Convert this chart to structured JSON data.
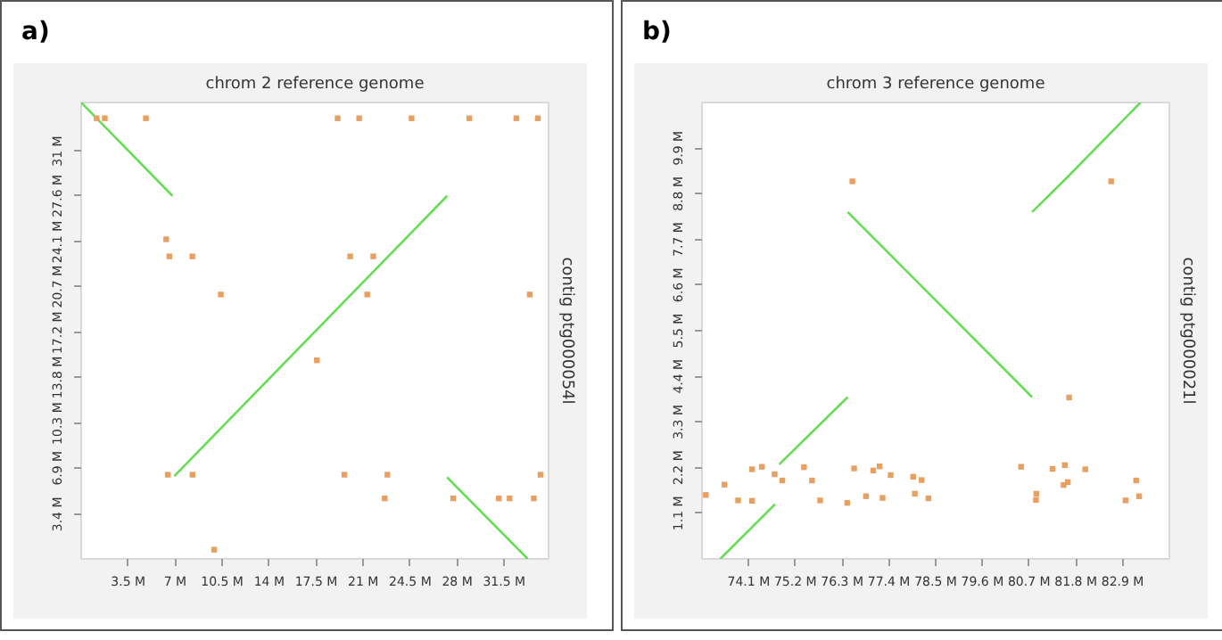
{
  "chart_data": [
    {
      "type": "line",
      "title": "chrom 2 reference genome",
      "ylabel": "contig ptg000054l",
      "annotations": [
        "a)"
      ],
      "grid": false,
      "line_style": "solid",
      "xlim": [
        0,
        34.8
      ],
      "ylim": [
        0,
        34.7
      ],
      "xticks": [
        {
          "value": 3.5,
          "label": "3.5 M"
        },
        {
          "value": 7,
          "label": "7 M"
        },
        {
          "value": 10.5,
          "label": "10.5 M"
        },
        {
          "value": 14,
          "label": "14 M"
        },
        {
          "value": 17.5,
          "label": "17.5 M"
        },
        {
          "value": 21,
          "label": "21 M"
        },
        {
          "value": 24.5,
          "label": "24.5 M"
        },
        {
          "value": 28,
          "label": "28 M"
        },
        {
          "value": 31.5,
          "label": "31.5 M"
        }
      ],
      "yticks": [
        {
          "value": 3.4,
          "label": "3.4 M"
        },
        {
          "value": 6.9,
          "label": "6.9 M"
        },
        {
          "value": 10.3,
          "label": "10.3 M"
        },
        {
          "value": 13.8,
          "label": "13.8 M"
        },
        {
          "value": 17.2,
          "label": "17.2 M"
        },
        {
          "value": 20.7,
          "label": "20.7 M"
        },
        {
          "value": 24.1,
          "label": "24.1 M"
        },
        {
          "value": 27.6,
          "label": "27.6 M"
        },
        {
          "value": 31,
          "label": "31 M"
        }
      ],
      "series": [
        {
          "color": "#66dd55",
          "x": [
            0,
            6.8
          ],
          "values": [
            34.7,
            27.6
          ]
        },
        {
          "color": "#66dd55",
          "x": [
            6.94,
            27.25
          ],
          "values": [
            6.3,
            27.6
          ]
        },
        {
          "color": "#66dd55",
          "x": [
            27.25,
            33.25
          ],
          "values": [
            6.2,
            0
          ]
        },
        {
          "type": "scatter",
          "marker": "square",
          "color": "#e8a060",
          "x": [
            1.15,
            1.76,
            4.82,
            19.1,
            20.7,
            24.6,
            28.9,
            32.4,
            34.0,
            6.33,
            6.57,
            8.28,
            20.03,
            21.75,
            10.4,
            21.3,
            33.4,
            17.55,
            6.45,
            8.29,
            19.6,
            22.8,
            34.2,
            22.6,
            27.7,
            31.1,
            31.9,
            33.7,
            9.9
          ],
          "values": [
            33.5,
            33.5,
            33.5,
            33.5,
            33.5,
            33.5,
            33.5,
            33.5,
            33.5,
            24.3,
            23.0,
            23.0,
            23.0,
            23.0,
            20.1,
            20.1,
            20.1,
            15.1,
            6.4,
            6.4,
            6.4,
            6.4,
            6.4,
            4.6,
            4.6,
            4.6,
            4.6,
            4.6,
            0.7
          ]
        }
      ]
    },
    {
      "type": "line",
      "title": "chrom 3 reference genome",
      "ylabel": "contig ptg000021l",
      "annotations": [
        "b)"
      ],
      "grid": false,
      "line_style": "solid",
      "xlim": [
        73.0,
        84.0
      ],
      "ylim": [
        0,
        11.0
      ],
      "xticks": [
        {
          "value": 74.1,
          "label": "74.1 M"
        },
        {
          "value": 75.2,
          "label": "75.2 M"
        },
        {
          "value": 76.3,
          "label": "76.3 M"
        },
        {
          "value": 77.4,
          "label": "77.4 M"
        },
        {
          "value": 78.5,
          "label": "78.5 M"
        },
        {
          "value": 79.6,
          "label": "79.6 M"
        },
        {
          "value": 80.7,
          "label": "80.7 M"
        },
        {
          "value": 81.8,
          "label": "81.8 M"
        },
        {
          "value": 82.9,
          "label": "82.9 M"
        }
      ],
      "yticks": [
        {
          "value": 1.1,
          "label": "1.1 M"
        },
        {
          "value": 2.2,
          "label": "2.2 M"
        },
        {
          "value": 3.3,
          "label": "3.3 M"
        },
        {
          "value": 4.4,
          "label": "4.4 M"
        },
        {
          "value": 5.5,
          "label": "5.5 M"
        },
        {
          "value": 6.6,
          "label": "6.6 M"
        },
        {
          "value": 7.7,
          "label": "7.7 M"
        },
        {
          "value": 8.8,
          "label": "8.8 M"
        },
        {
          "value": 9.9,
          "label": "9.9 M"
        }
      ],
      "series": [
        {
          "color": "#66dd55",
          "x": [
            73.43,
            74.72
          ],
          "values": [
            0,
            1.32
          ]
        },
        {
          "color": "#66dd55",
          "x": [
            74.82,
            76.43
          ],
          "values": [
            2.28,
            3.9
          ]
        },
        {
          "color": "#66dd55",
          "x": [
            76.43,
            80.77
          ],
          "values": [
            8.36,
            3.9
          ]
        },
        {
          "color": "#66dd55",
          "x": [
            80.77,
            81.6,
            83.32
          ],
          "values": [
            8.36,
            9.2,
            11.0
          ]
        },
        {
          "type": "scatter",
          "marker": "square",
          "color": "#e8a060",
          "x": [
            73.53,
            73.85,
            74.18,
            74.18,
            74.41,
            74.71,
            74.89,
            75.4,
            75.59,
            75.78,
            76.42,
            76.58,
            76.86,
            77.03,
            77.18,
            77.25,
            77.44,
            77.97,
            78.01,
            78.17,
            78.33,
            80.51,
            80.87,
            80.86,
            81.25,
            81.51,
            81.54,
            81.61,
            82.02,
            82.97,
            83.22,
            83.29,
            73.09,
            76.54,
            82.63,
            81.64
          ],
          "values": [
            1.79,
            1.41,
            2.16,
            1.4,
            2.22,
            2.04,
            1.89,
            2.21,
            1.89,
            1.41,
            1.35,
            2.18,
            1.51,
            2.13,
            2.23,
            1.47,
            2.02,
            1.98,
            1.57,
            1.9,
            1.46,
            2.22,
            1.57,
            1.42,
            2.17,
            1.78,
            2.26,
            1.85,
            2.16,
            1.41,
            1.89,
            1.51,
            1.54,
            9.1,
            9.1,
            3.89
          ]
        }
      ]
    }
  ]
}
